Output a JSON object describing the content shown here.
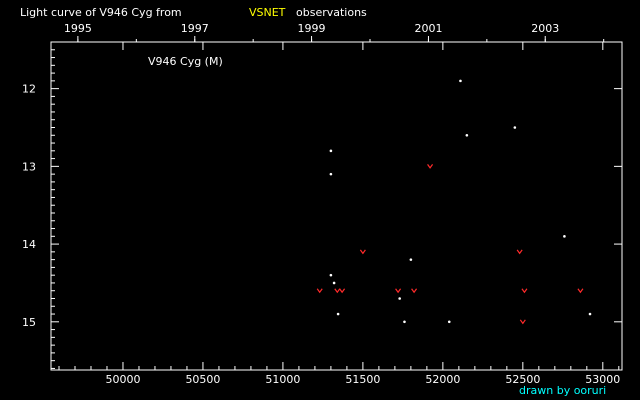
{
  "chart_data": {
    "type": "scatter",
    "title_prefix": "Light curve of V946 Cyg from",
    "title_source": "VSNET",
    "title_suffix": "observations",
    "star_label": "V946 Cyg (M)",
    "credit": "drawn by ooruri",
    "x_axis": {
      "min": 49550,
      "max": 53120,
      "major_ticks": [
        50000,
        50500,
        51000,
        51500,
        52000,
        52500,
        53000
      ],
      "tick_labels": [
        "50000",
        "50500",
        "51000",
        "51500",
        "52000",
        "52500",
        "53000"
      ]
    },
    "top_axis": {
      "year_ticks": [
        1995,
        1997,
        1999,
        2001,
        2003
      ],
      "year_labels": [
        "1995",
        "1997",
        "1999",
        "2001",
        "2003"
      ],
      "year_jd": [
        49718,
        50449,
        51179,
        51910,
        52640
      ]
    },
    "y_axis": {
      "min": 11.4,
      "max": 15.62,
      "inverted": true,
      "major_ticks": [
        12,
        13,
        14,
        15
      ],
      "tick_labels": [
        "12",
        "13",
        "14",
        "15"
      ]
    },
    "colors": {
      "background": "#000000",
      "axes": "#ffffff",
      "observation": "#ffffff",
      "fainter_than": "#ff2a2a",
      "source_label": "#ffff00",
      "credit": "#00ffff"
    },
    "series": [
      {
        "kind": "observation",
        "marker": "dot",
        "points": [
          {
            "x": 51300,
            "y": 12.8
          },
          {
            "x": 51300,
            "y": 13.1
          },
          {
            "x": 51300,
            "y": 14.4
          },
          {
            "x": 51320,
            "y": 14.5
          },
          {
            "x": 51345,
            "y": 14.9
          },
          {
            "x": 51730,
            "y": 14.7
          },
          {
            "x": 51760,
            "y": 15.0
          },
          {
            "x": 51800,
            "y": 14.2
          },
          {
            "x": 52040,
            "y": 15.0
          },
          {
            "x": 52110,
            "y": 11.9
          },
          {
            "x": 52150,
            "y": 12.6
          },
          {
            "x": 52450,
            "y": 12.5
          },
          {
            "x": 52760,
            "y": 13.9
          },
          {
            "x": 52920,
            "y": 14.9
          }
        ]
      },
      {
        "kind": "fainter_than",
        "marker": "v",
        "points": [
          {
            "x": 51230,
            "y": 14.6
          },
          {
            "x": 51340,
            "y": 14.6
          },
          {
            "x": 51370,
            "y": 14.6
          },
          {
            "x": 51500,
            "y": 14.1
          },
          {
            "x": 51720,
            "y": 14.6
          },
          {
            "x": 51820,
            "y": 14.6
          },
          {
            "x": 51920,
            "y": 13.0
          },
          {
            "x": 52480,
            "y": 14.1
          },
          {
            "x": 52510,
            "y": 14.6
          },
          {
            "x": 52500,
            "y": 15.0
          },
          {
            "x": 52860,
            "y": 14.6
          }
        ]
      }
    ]
  }
}
